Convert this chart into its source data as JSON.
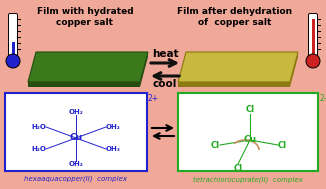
{
  "bg_color": "#f0a898",
  "title_left": "Film with hydrated\ncopper salt",
  "title_right": "Film after dehydration\nof  copper salt",
  "film_left_color": "#3a7a1a",
  "film_left_shadow": "#254d10",
  "film_right_color": "#c8b840",
  "film_right_shadow": "#8a7a10",
  "heat_label": "heat",
  "cool_label": "cool",
  "label_left": "hexaaquacopper(II)  complex",
  "label_right": "tetrachlorocuprate(II)  complex",
  "label_left_color": "#2222cc",
  "label_right_color": "#22aa22",
  "thermo_left_color": "#2222cc",
  "thermo_right_color": "#cc2222",
  "arrow_color": "#111111",
  "box_left_border": "#2222cc",
  "box_right_border": "#22aa22"
}
